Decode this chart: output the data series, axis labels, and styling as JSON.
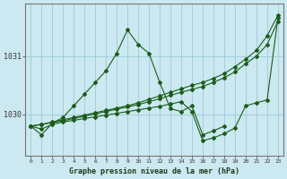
{
  "background_color": "#cce8f0",
  "grid_color": "#99ccd9",
  "line_color": "#1a5c1a",
  "title": "Graphe pression niveau de la mer (hPa)",
  "ylabel_ticks": [
    1030,
    1031
  ],
  "xlim": [
    -0.5,
    23.5
  ],
  "ylim": [
    1029.3,
    1031.9
  ],
  "lines": [
    {
      "x": [
        0,
        1,
        2,
        3,
        4,
        5,
        6,
        7,
        8,
        9,
        10,
        11,
        12,
        13,
        14,
        15,
        16,
        17,
        18
      ],
      "y": [
        1029.8,
        1029.65,
        1029.85,
        1029.95,
        1030.15,
        1030.35,
        1030.55,
        1030.75,
        1031.05,
        1031.45,
        1031.2,
        1031.05,
        1030.55,
        1030.1,
        1030.05,
        1030.15,
        1029.65,
        1029.72,
        1029.8
      ]
    },
    {
      "x": [
        0,
        1,
        2,
        3,
        4,
        5,
        6,
        7,
        8,
        9,
        10,
        11,
        12,
        13,
        14,
        15,
        16,
        17,
        18,
        19,
        20,
        21,
        22,
        23
      ],
      "y": [
        1029.8,
        1029.83,
        1029.87,
        1029.91,
        1029.95,
        1029.99,
        1030.03,
        1030.07,
        1030.11,
        1030.15,
        1030.2,
        1030.26,
        1030.32,
        1030.38,
        1030.44,
        1030.5,
        1030.55,
        1030.62,
        1030.7,
        1030.82,
        1030.95,
        1031.1,
        1031.35,
        1031.7
      ]
    },
    {
      "x": [
        0,
        1,
        2,
        3,
        4,
        5,
        6,
        7,
        8,
        9,
        10,
        11,
        12,
        13,
        14,
        15,
        16,
        17,
        18,
        19,
        20,
        21,
        22,
        23
      ],
      "y": [
        1029.8,
        1029.83,
        1029.86,
        1029.89,
        1029.93,
        1029.97,
        1030.01,
        1030.05,
        1030.09,
        1030.13,
        1030.17,
        1030.22,
        1030.27,
        1030.33,
        1030.38,
        1030.43,
        1030.48,
        1030.55,
        1030.63,
        1030.73,
        1030.87,
        1031.0,
        1031.2,
        1031.6
      ]
    },
    {
      "x": [
        0,
        1,
        2,
        3,
        4,
        5,
        6,
        7,
        8,
        9,
        10,
        11,
        12,
        13,
        14,
        15,
        16,
        17,
        18,
        19,
        20,
        21,
        22,
        23
      ],
      "y": [
        1029.8,
        1029.75,
        1029.83,
        1029.87,
        1029.9,
        1029.93,
        1029.96,
        1029.99,
        1030.02,
        1030.05,
        1030.08,
        1030.11,
        1030.14,
        1030.18,
        1030.22,
        1030.05,
        1029.55,
        1029.6,
        1029.67,
        1029.77,
        1030.15,
        1030.2,
        1030.25,
        1031.65
      ]
    }
  ],
  "xticks": [
    0,
    1,
    2,
    3,
    4,
    5,
    6,
    7,
    8,
    9,
    10,
    11,
    12,
    13,
    14,
    15,
    16,
    17,
    18,
    19,
    20,
    21,
    22,
    23
  ]
}
